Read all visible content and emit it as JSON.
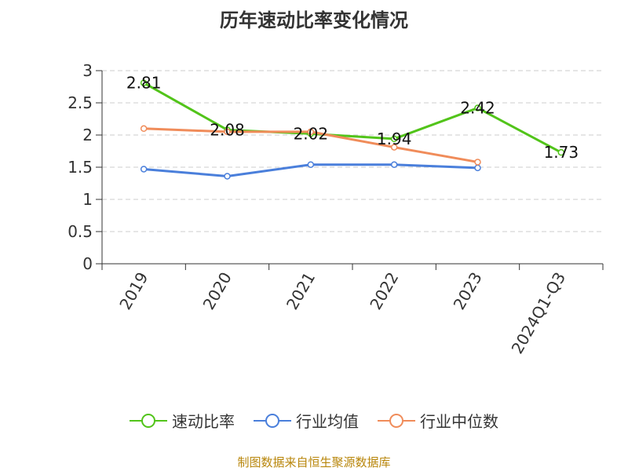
{
  "title": "历年速动比率变化情况",
  "source_text": "制图数据来自恒生聚源数据库",
  "colors": {
    "grid": "#cccccc",
    "axis": "#333333"
  },
  "chart_data": {
    "type": "line",
    "title": "历年速动比率变化情况",
    "categories": [
      "2019",
      "2020",
      "2021",
      "2022",
      "2023",
      "2024Q1-Q3"
    ],
    "ylim": [
      0,
      3
    ],
    "yticks": [
      0,
      0.5,
      1,
      1.5,
      2,
      2.5,
      3
    ],
    "grid": true,
    "legend_position": "bottom",
    "series": [
      {
        "name": "速动比率",
        "color": "#52c41a",
        "values": [
          2.81,
          2.08,
          2.02,
          1.94,
          2.42,
          1.73
        ],
        "labels": [
          "2.81",
          "2.08",
          "2.02",
          "1.94",
          "2.42",
          "1.73"
        ]
      },
      {
        "name": "行业均值",
        "color": "#4a7fdb",
        "values": [
          1.47,
          1.36,
          1.54,
          1.54,
          1.49,
          null
        ]
      },
      {
        "name": "行业中位数",
        "color": "#f08c5a",
        "values": [
          2.1,
          2.05,
          2.05,
          1.81,
          1.58,
          null
        ]
      }
    ]
  }
}
